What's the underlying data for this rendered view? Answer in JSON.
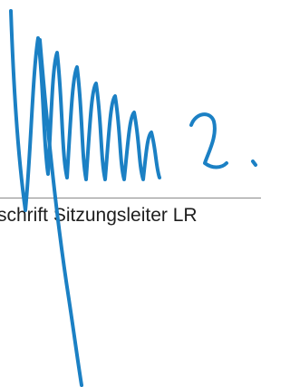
{
  "caption": "schrift Sitzungsleiter LR"
}
